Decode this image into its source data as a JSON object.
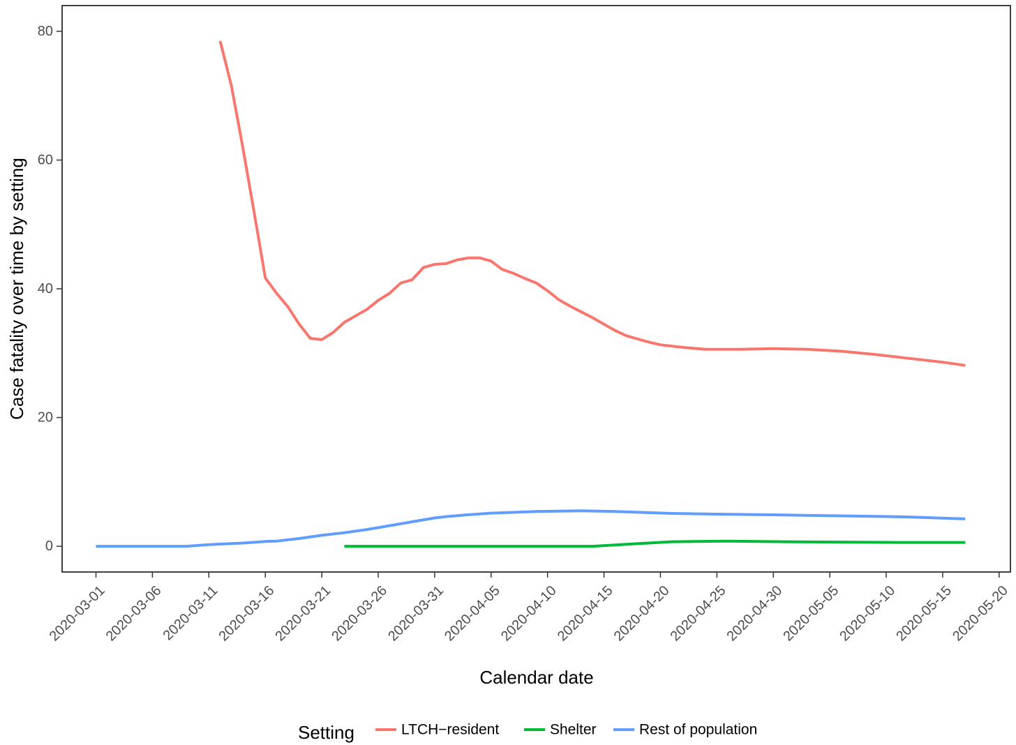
{
  "chart_data": {
    "type": "line",
    "xlabel": "Calendar date",
    "ylabel": "Case fatality over time by setting",
    "xlim": [
      "2020-02-27",
      "2020-05-21"
    ],
    "ylim": [
      -4,
      84
    ],
    "x_ticks": [
      "2020-03-01",
      "2020-03-06",
      "2020-03-11",
      "2020-03-16",
      "2020-03-21",
      "2020-03-26",
      "2020-03-31",
      "2020-04-05",
      "2020-04-10",
      "2020-04-15",
      "2020-04-20",
      "2020-04-25",
      "2020-04-30",
      "2020-05-05",
      "2020-05-10",
      "2020-05-15",
      "2020-05-20"
    ],
    "y_ticks": [
      0,
      20,
      40,
      60,
      80
    ],
    "grid": false,
    "legend": {
      "title": "Setting",
      "position": "bottom"
    },
    "series": [
      {
        "name": "LTCH−resident",
        "color": "#F8766D",
        "points": [
          [
            "2020-03-12",
            78.5
          ],
          [
            "2020-03-13",
            71.5
          ],
          [
            "2020-03-14",
            62.0
          ],
          [
            "2020-03-15",
            52.0
          ],
          [
            "2020-03-16",
            41.7
          ],
          [
            "2020-03-17",
            39.3
          ],
          [
            "2020-03-18",
            37.2
          ],
          [
            "2020-03-19",
            34.5
          ],
          [
            "2020-03-20",
            32.3
          ],
          [
            "2020-03-21",
            32.1
          ],
          [
            "2020-03-22",
            33.2
          ],
          [
            "2020-03-23",
            34.8
          ],
          [
            "2020-03-24",
            35.8
          ],
          [
            "2020-03-25",
            36.8
          ],
          [
            "2020-03-26",
            38.2
          ],
          [
            "2020-03-27",
            39.3
          ],
          [
            "2020-03-28",
            40.9
          ],
          [
            "2020-03-29",
            41.4
          ],
          [
            "2020-03-30",
            43.3
          ],
          [
            "2020-03-31",
            43.8
          ],
          [
            "2020-04-01",
            43.9
          ],
          [
            "2020-04-02",
            44.5
          ],
          [
            "2020-04-03",
            44.8
          ],
          [
            "2020-04-04",
            44.8
          ],
          [
            "2020-04-05",
            44.3
          ],
          [
            "2020-04-06",
            43.0
          ],
          [
            "2020-04-07",
            42.4
          ],
          [
            "2020-04-08",
            41.6
          ],
          [
            "2020-04-09",
            40.9
          ],
          [
            "2020-04-10",
            39.7
          ],
          [
            "2020-04-11",
            38.3
          ],
          [
            "2020-04-12",
            37.3
          ],
          [
            "2020-04-13",
            36.4
          ],
          [
            "2020-04-14",
            35.5
          ],
          [
            "2020-04-15",
            34.5
          ],
          [
            "2020-04-16",
            33.5
          ],
          [
            "2020-04-17",
            32.7
          ],
          [
            "2020-04-18",
            32.2
          ],
          [
            "2020-04-19",
            31.7
          ],
          [
            "2020-04-20",
            31.3
          ],
          [
            "2020-04-22",
            30.9
          ],
          [
            "2020-04-24",
            30.6
          ],
          [
            "2020-04-27",
            30.6
          ],
          [
            "2020-04-30",
            30.7
          ],
          [
            "2020-05-03",
            30.6
          ],
          [
            "2020-05-06",
            30.3
          ],
          [
            "2020-05-09",
            29.8
          ],
          [
            "2020-05-12",
            29.2
          ],
          [
            "2020-05-15",
            28.6
          ],
          [
            "2020-05-17",
            28.1
          ]
        ]
      },
      {
        "name": "Shelter",
        "color": "#00BA38",
        "points": [
          [
            "2020-03-23",
            0.0
          ],
          [
            "2020-04-14",
            0.0
          ],
          [
            "2020-04-17",
            0.3
          ],
          [
            "2020-04-21",
            0.7
          ],
          [
            "2020-04-26",
            0.8
          ],
          [
            "2020-05-01",
            0.7
          ],
          [
            "2020-05-06",
            0.65
          ],
          [
            "2020-05-11",
            0.6
          ],
          [
            "2020-05-17",
            0.6
          ]
        ]
      },
      {
        "name": "Rest of population",
        "color": "#619CFF",
        "points": [
          [
            "2020-03-01",
            0.0
          ],
          [
            "2020-03-09",
            0.0
          ],
          [
            "2020-03-11",
            0.25
          ],
          [
            "2020-03-14",
            0.5
          ],
          [
            "2020-03-16",
            0.75
          ],
          [
            "2020-03-17",
            0.8
          ],
          [
            "2020-03-19",
            1.2
          ],
          [
            "2020-03-21",
            1.7
          ],
          [
            "2020-03-23",
            2.1
          ],
          [
            "2020-03-25",
            2.6
          ],
          [
            "2020-03-27",
            3.2
          ],
          [
            "2020-03-29",
            3.8
          ],
          [
            "2020-03-31",
            4.4
          ],
          [
            "2020-04-01",
            4.6
          ],
          [
            "2020-04-03",
            4.9
          ],
          [
            "2020-04-05",
            5.15
          ],
          [
            "2020-04-09",
            5.4
          ],
          [
            "2020-04-13",
            5.5
          ],
          [
            "2020-04-16",
            5.4
          ],
          [
            "2020-04-21",
            5.1
          ],
          [
            "2020-04-25",
            5.0
          ],
          [
            "2020-05-01",
            4.85
          ],
          [
            "2020-05-07",
            4.7
          ],
          [
            "2020-05-12",
            4.55
          ],
          [
            "2020-05-17",
            4.25
          ]
        ]
      }
    ]
  },
  "colors": {
    "axis": "#000000",
    "tick_label": "#4d4d4d",
    "background": "#ffffff"
  }
}
